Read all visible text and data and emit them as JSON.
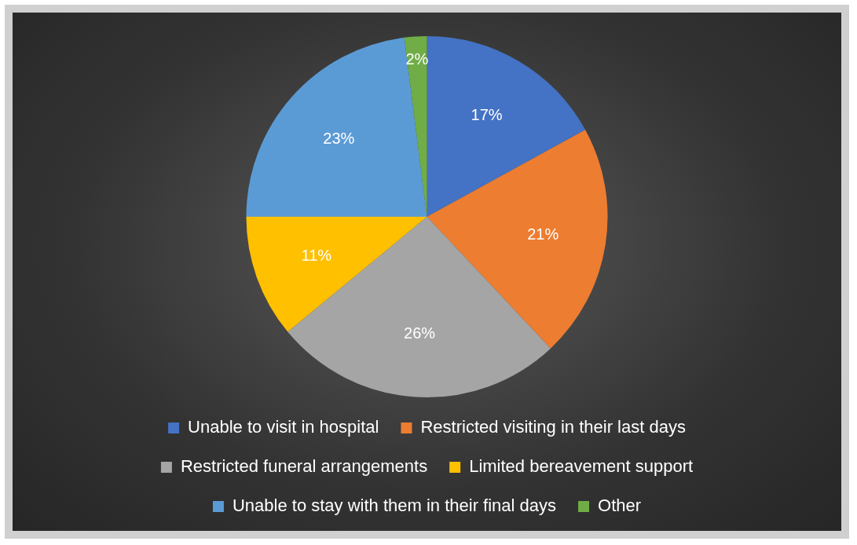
{
  "chart_data": {
    "type": "pie",
    "categories": [
      "Unable to visit in hospital",
      "Restricted visiting in their last days",
      "Restricted funeral arrangements",
      "Limited bereavement support",
      "Unable to stay with them in their final days",
      "Other"
    ],
    "values": [
      17,
      21,
      26,
      11,
      23,
      2
    ],
    "value_labels": [
      "17%",
      "21%",
      "26%",
      "11%",
      "23%",
      "2%"
    ],
    "colors": [
      "#4472c4",
      "#ed7d31",
      "#a5a5a5",
      "#ffc000",
      "#5b9bd5",
      "#70ad47"
    ],
    "legend": "bottom"
  }
}
